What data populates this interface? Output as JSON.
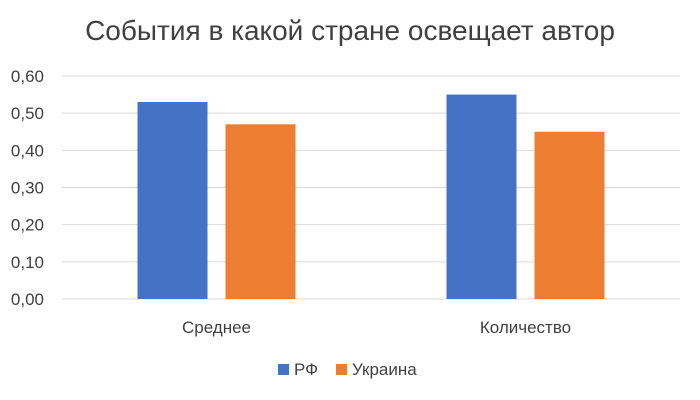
{
  "chart_data": {
    "type": "bar",
    "title": "События в какой стране освещает автор",
    "xlabel": "",
    "ylabel": "",
    "categories": [
      "Среднее",
      "Количество"
    ],
    "series": [
      {
        "name": "РФ",
        "values": [
          0.53,
          0.55
        ],
        "color": "#4472C4"
      },
      {
        "name": "Украина",
        "values": [
          0.47,
          0.45
        ],
        "color": "#ED7D31"
      }
    ],
    "ylim": [
      0,
      0.6
    ],
    "yticks": [
      0,
      0.1,
      0.2,
      0.3,
      0.4,
      0.5,
      0.6
    ],
    "ytick_labels": [
      "0,00",
      "0,10",
      "0,20",
      "0,30",
      "0,40",
      "0,50",
      "0,60"
    ],
    "grid": true,
    "gridline_color": "#d9d9d9",
    "legend_position": "bottom"
  }
}
